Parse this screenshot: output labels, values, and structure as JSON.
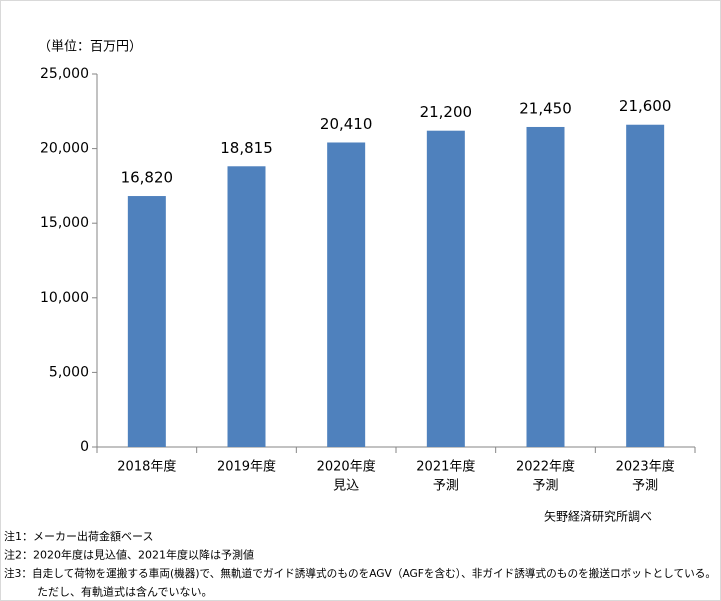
{
  "chart_data": {
    "type": "bar",
    "unit_label": "（単位：百万円）",
    "categories": [
      [
        "2018年度"
      ],
      [
        "2019年度"
      ],
      [
        "2020年度",
        "見込"
      ],
      [
        "2021年度",
        "予測"
      ],
      [
        "2022年度",
        "予測"
      ],
      [
        "2023年度",
        "予測"
      ]
    ],
    "values": [
      16820,
      18815,
      20410,
      21200,
      21450,
      21600
    ],
    "value_labels": [
      "16,820",
      "18,815",
      "20,410",
      "21,200",
      "21,450",
      "21,600"
    ],
    "color": "#4f81bd",
    "ylim": [
      0,
      25000
    ],
    "yticks": [
      0,
      {
        "value": 5000,
        "label": "5,000"
      },
      {
        "value": 10000,
        "label": "10,000"
      },
      {
        "value": 15000,
        "label": "15,000"
      },
      {
        "value": 20000,
        "label": "20,000"
      },
      {
        "value": 25000,
        "label": "25,000"
      }
    ],
    "grid": false,
    "source": "矢野経済研究所調べ",
    "notes": [
      "注1：メーカー出荷金額ベース",
      "注2：2020年度は見込値、2021年度以降は予測値",
      "注3：自走して荷物を運搬する車両(機器)で、無軌道でガイド誘導式のものをAGV（AGFを含む）、非ガイド誘導式のものを搬送ロボットとしている。",
      "ただし、有軌道式は含んでいない。"
    ]
  }
}
